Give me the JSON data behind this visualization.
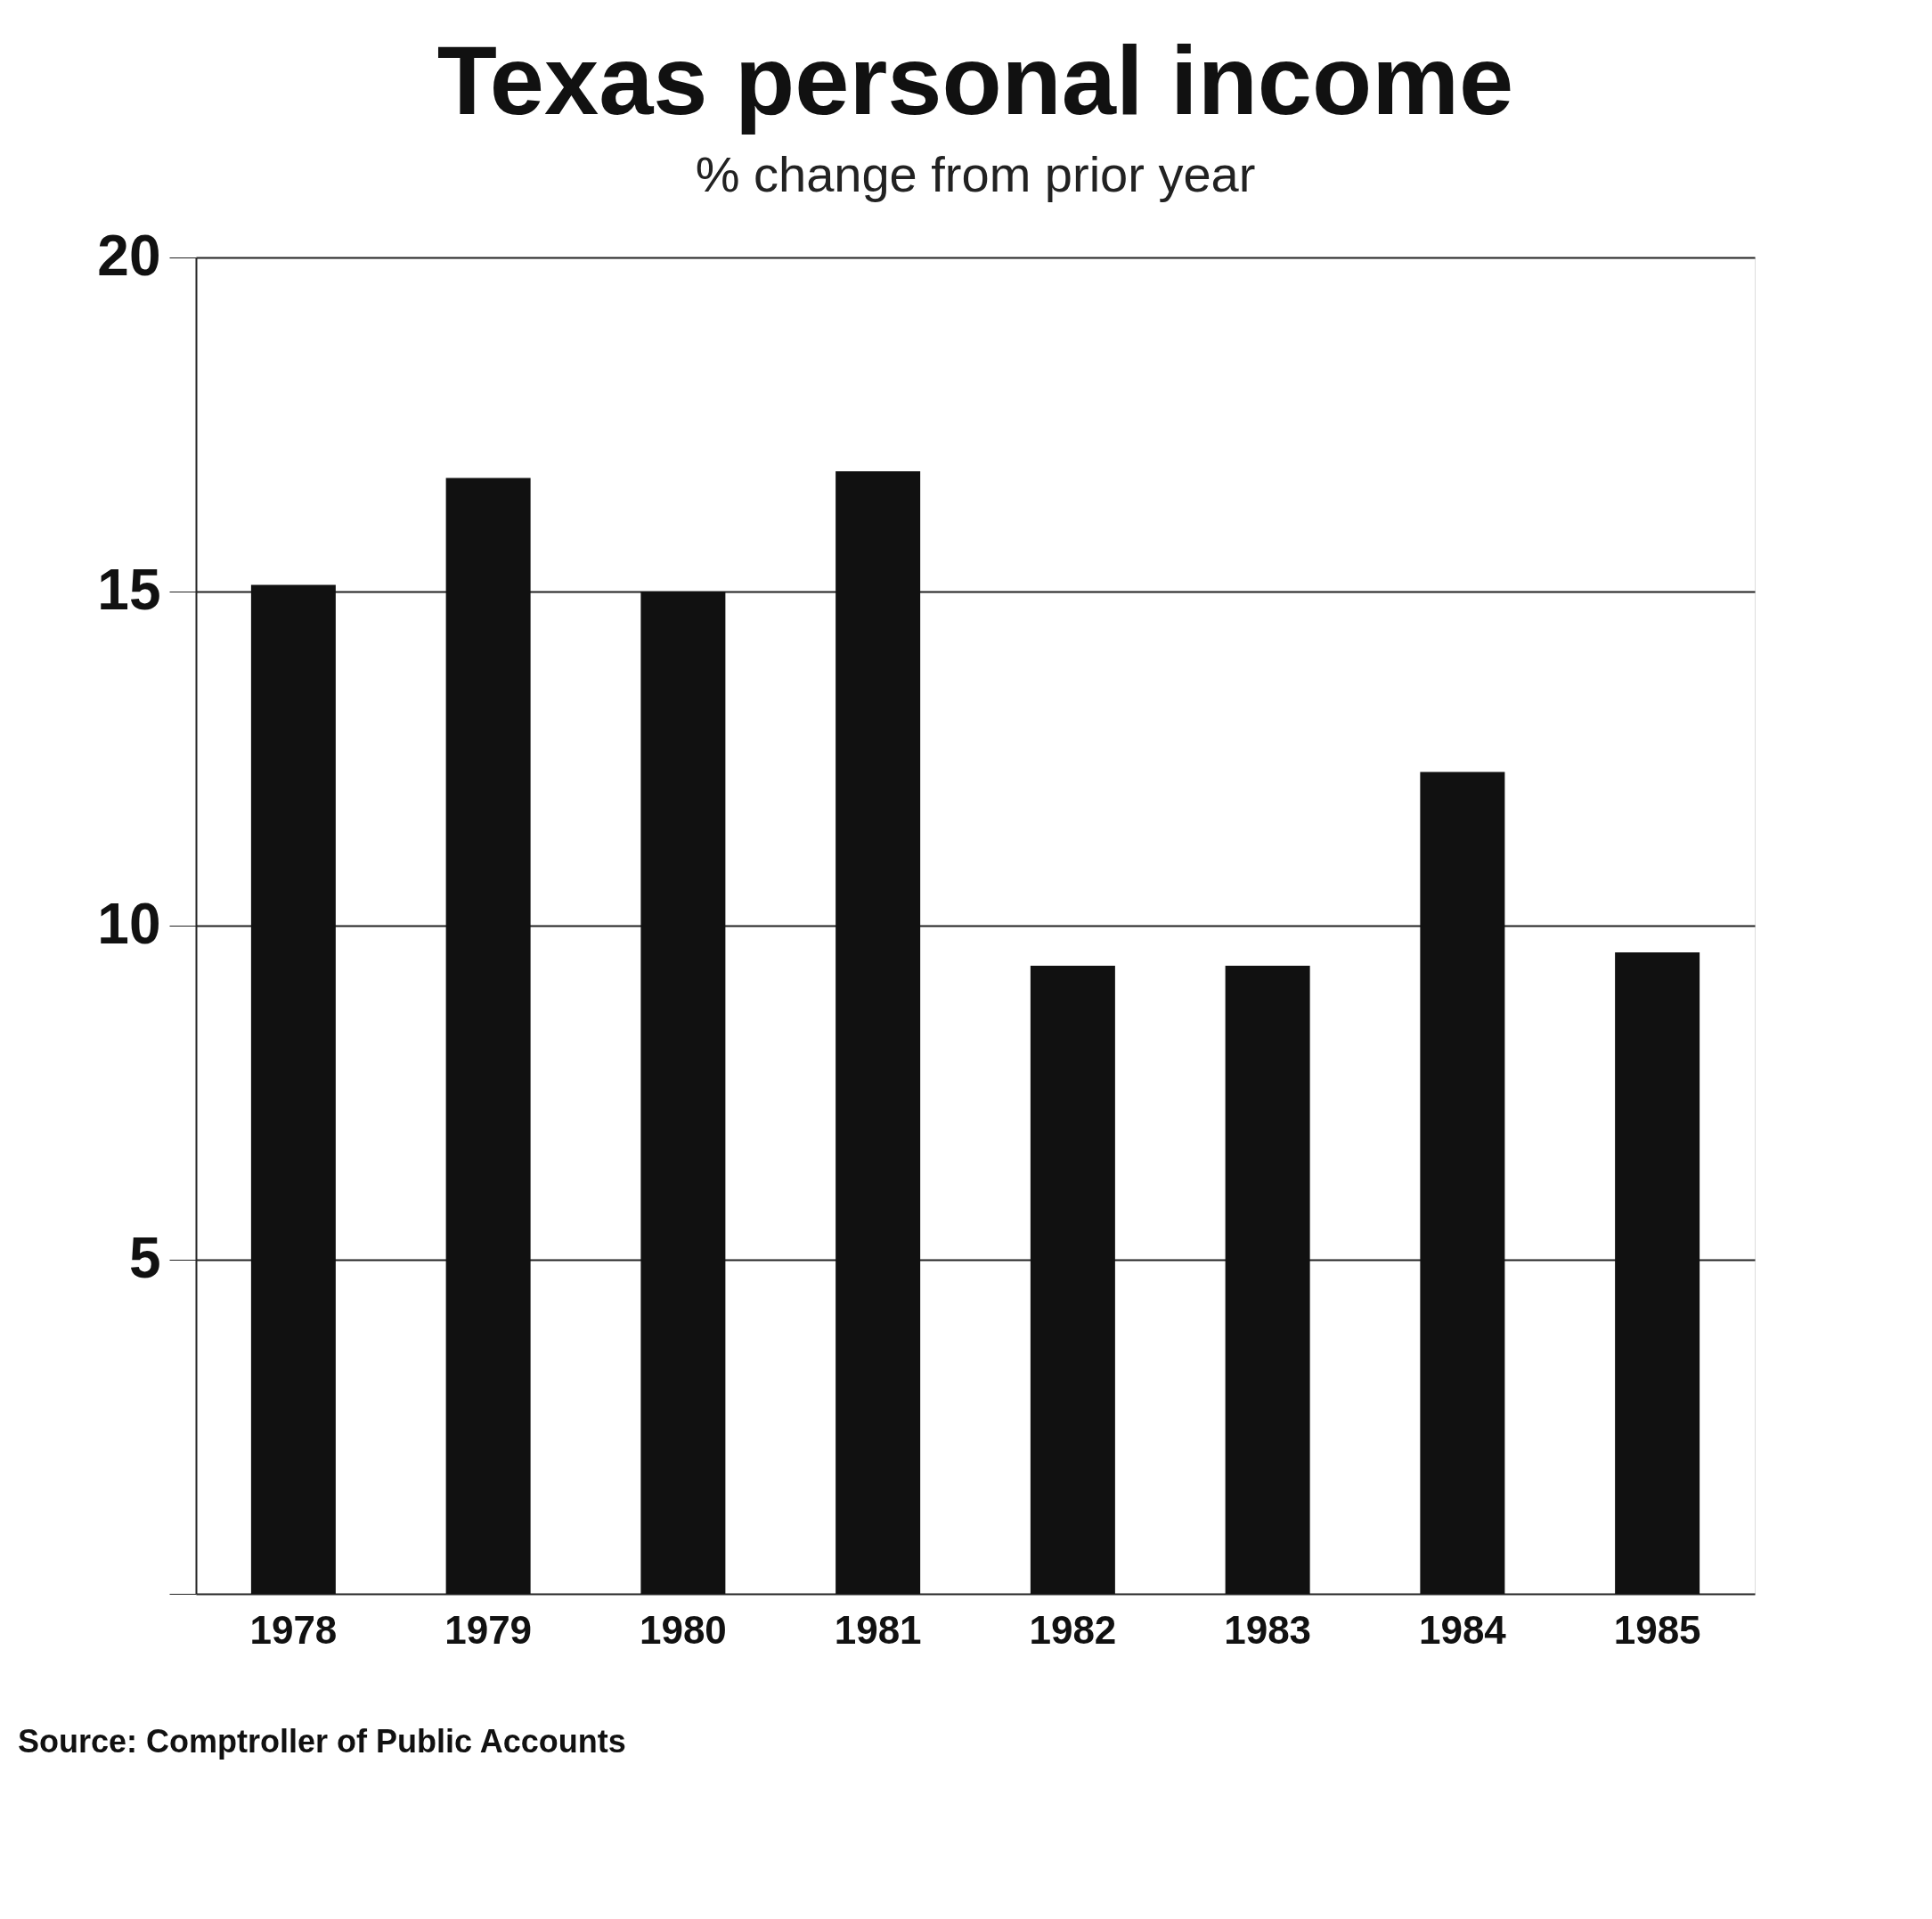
{
  "chart_data": {
    "type": "bar",
    "title": "Texas personal income",
    "subtitle": "% change from prior year",
    "categories": [
      "1978",
      "1979",
      "1980",
      "1981",
      "1982",
      "1983",
      "1984",
      "1985"
    ],
    "values": [
      15.1,
      16.7,
      15.0,
      16.8,
      9.4,
      9.4,
      12.3,
      9.6
    ],
    "color": "#111111",
    "ylim": [
      0,
      20
    ],
    "yticks": [
      {
        "value": 0,
        "label": null
      },
      5,
      10,
      15,
      20
    ],
    "grid": "y",
    "annotations": [
      "Source: Comptroller of Public Accounts"
    ]
  }
}
